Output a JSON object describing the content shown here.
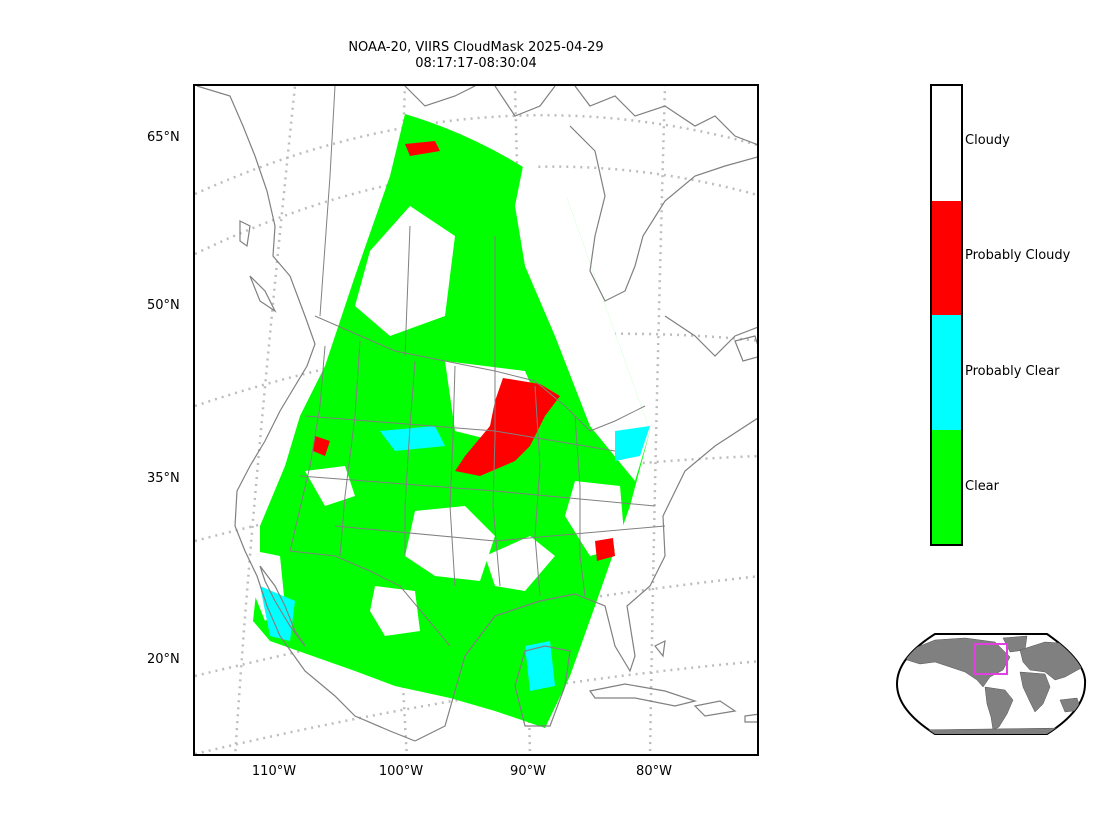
{
  "title_line1": "NOAA-20, VIIRS CloudMask 2025-04-29",
  "title_line2": "08:17:17-08:30:04",
  "lat_ticks": [
    {
      "label": "65°N"
    },
    {
      "label": "50°N"
    },
    {
      "label": "35°N"
    },
    {
      "label": "20°N"
    }
  ],
  "lon_ticks": [
    {
      "label": "110°W"
    },
    {
      "label": "100°W"
    },
    {
      "label": "90°W"
    },
    {
      "label": "80°W"
    }
  ],
  "colorbar": {
    "classes": [
      {
        "label": "Cloudy",
        "color": "#ffffff"
      },
      {
        "label": "Probably Cloudy",
        "color": "#ff0000"
      },
      {
        "label": "Probably Clear",
        "color": "#00ffff"
      },
      {
        "label": "Clear",
        "color": "#00ff00"
      }
    ]
  },
  "colors": {
    "coastline": "#808080",
    "graticule": "#bdbdbd",
    "inset_land": "#808080",
    "inset_box": "#e040e0"
  }
}
